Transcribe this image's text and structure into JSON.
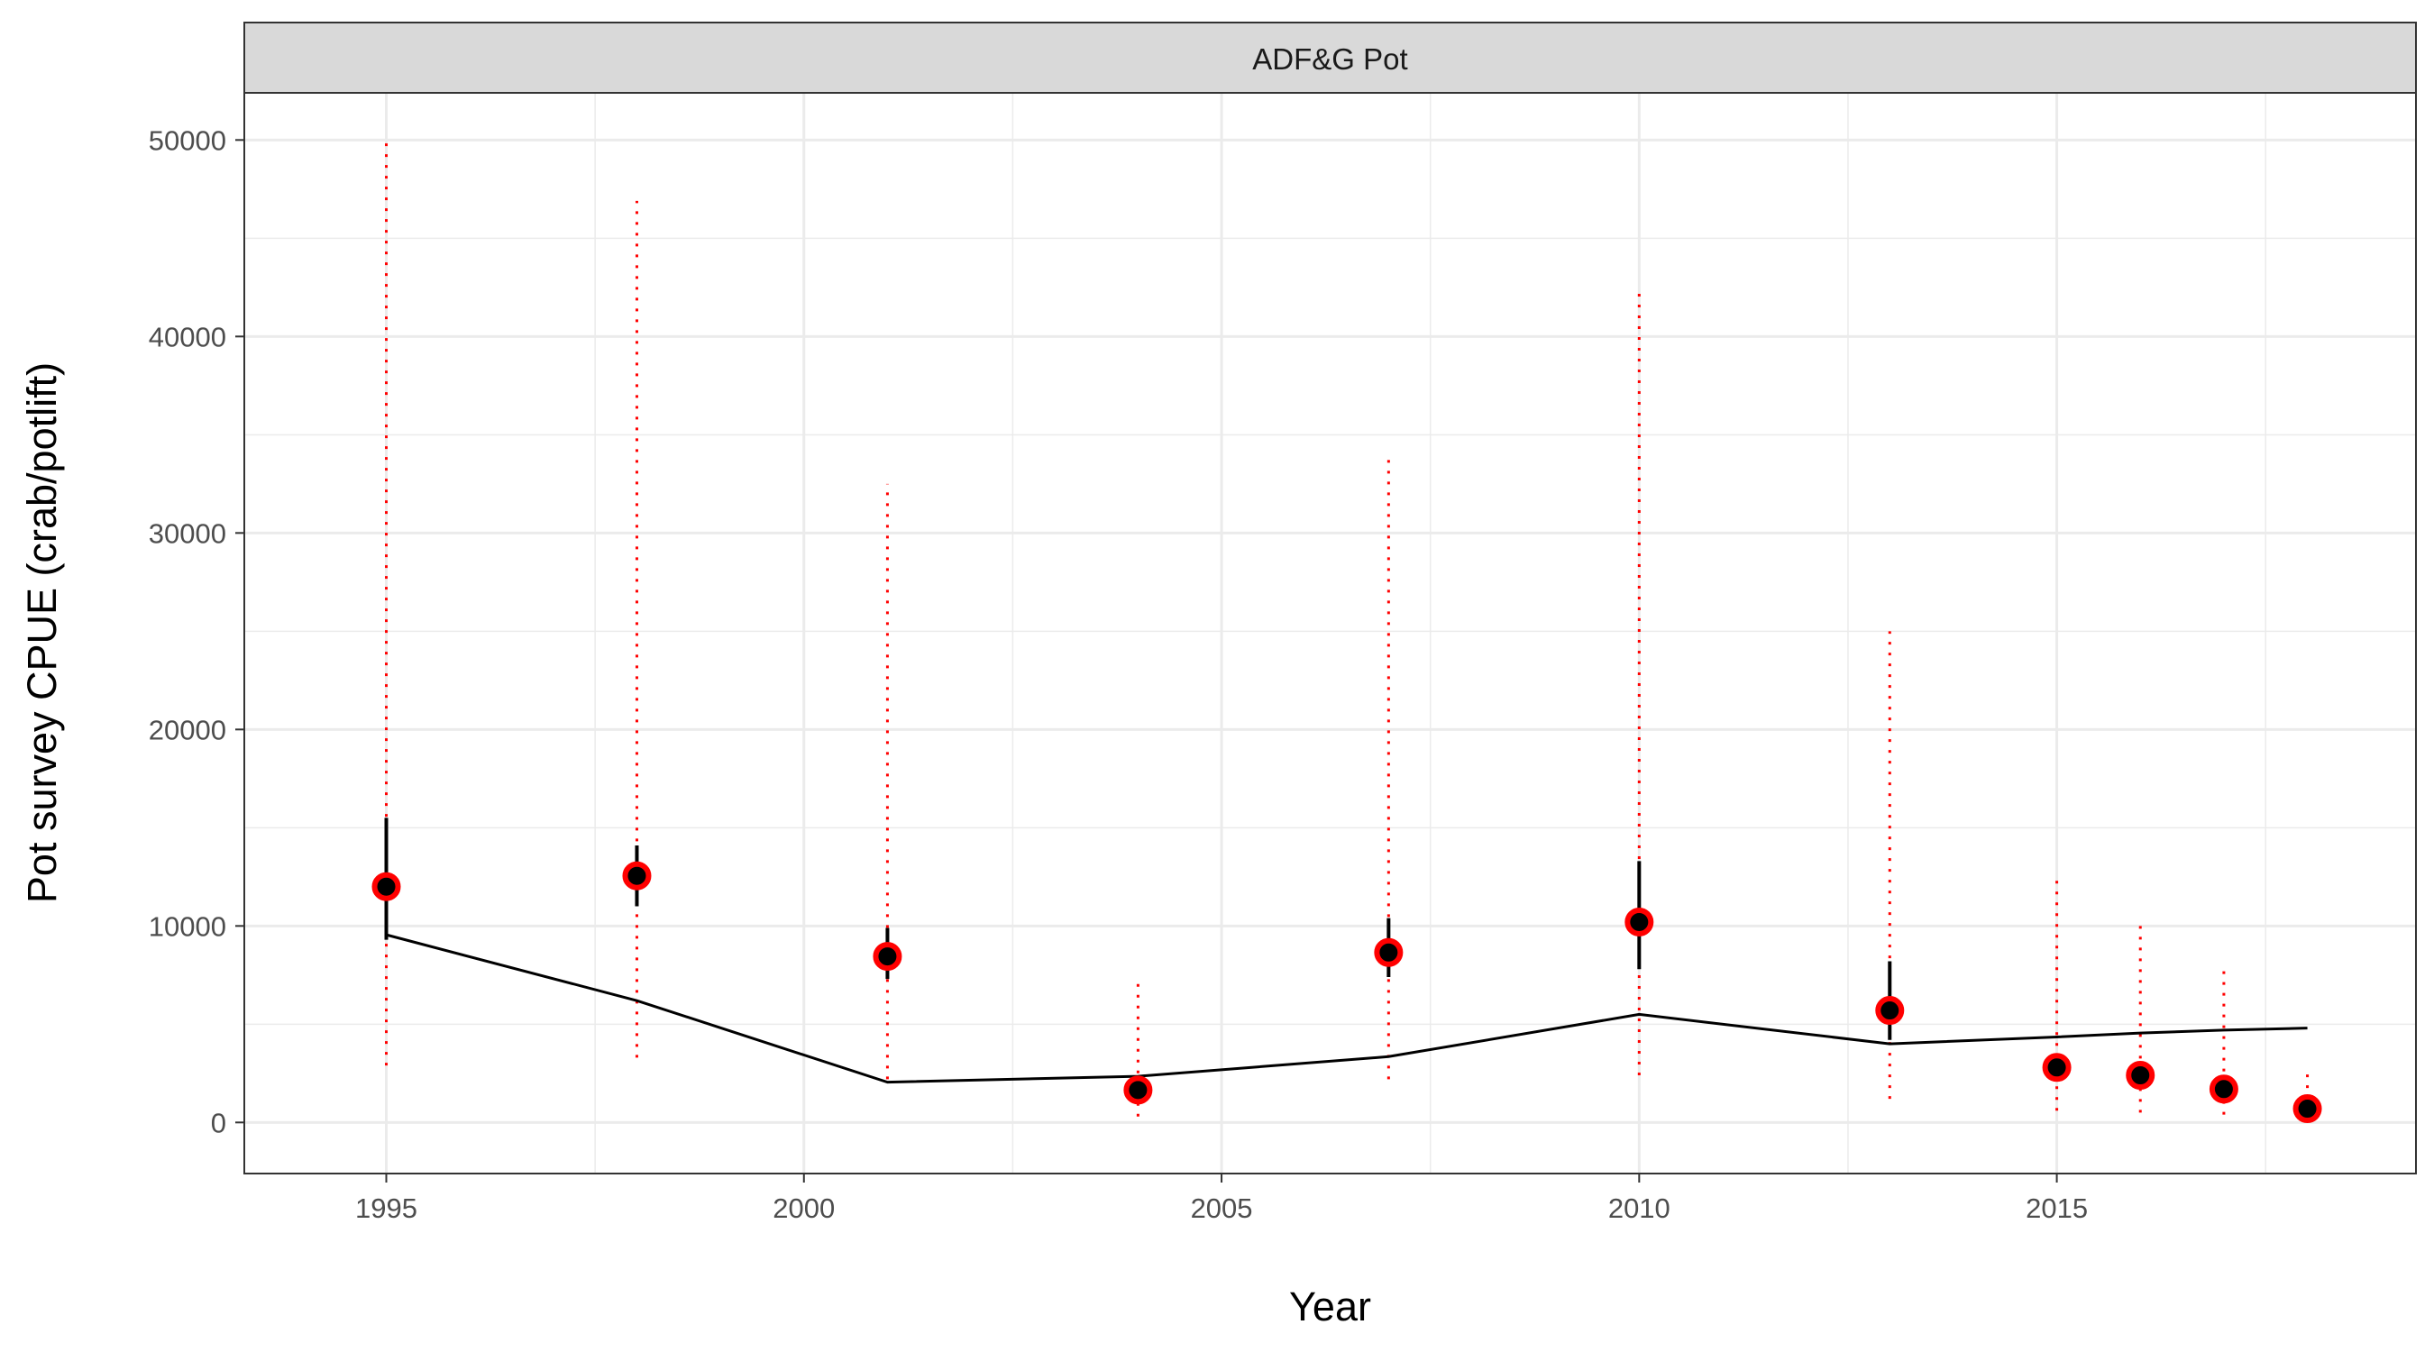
{
  "chart_data": {
    "type": "line",
    "panel_label": "ADF&G Pot",
    "xlabel": "Year",
    "ylabel": "Pot survey CPUE (crab/potlift)",
    "xlim": [
      1993.3,
      2019.3
    ],
    "ylim": [
      -2600,
      52400
    ],
    "x_ticks": [
      1995,
      2000,
      2005,
      2010,
      2015
    ],
    "y_ticks": [
      0,
      10000,
      20000,
      30000,
      40000,
      50000
    ],
    "grid": true,
    "legend": "none",
    "colors": {
      "observed_point": "#000000",
      "observed_ring": "#ff0000",
      "interval_95": "#ff0000",
      "interval_se": "#000000",
      "model_fit": "#000000",
      "grid": "#ebebeb",
      "strip_fill": "#d9d9d9",
      "panel_border": "#333333"
    },
    "series": [
      {
        "role": "observed",
        "x": [
          1995,
          1998,
          2001,
          2004,
          2007,
          2010,
          2013,
          2015,
          2016,
          2017,
          2018
        ],
        "y": [
          12000,
          12550,
          8450,
          1650,
          8650,
          10200,
          5700,
          2800,
          2400,
          1700,
          700
        ],
        "ci_lower": [
          2900,
          3300,
          2200,
          300,
          2200,
          2400,
          1200,
          600,
          500,
          400,
          100
        ],
        "ci_upper": [
          50000,
          46900,
          32500,
          7100,
          34000,
          42300,
          25000,
          12300,
          10200,
          7800,
          2600
        ],
        "se_lower": [
          9300,
          11000,
          7300,
          1200,
          7400,
          7800,
          4200,
          2100,
          1800,
          1300,
          500
        ],
        "se_upper": [
          15500,
          14100,
          9900,
          2200,
          10400,
          13300,
          8200,
          3500,
          3000,
          2200,
          1000
        ]
      },
      {
        "role": "fitted",
        "x": [
          1995,
          1998,
          2001,
          2004,
          2007,
          2010,
          2013,
          2015,
          2016,
          2017,
          2018
        ],
        "y": [
          9550,
          6200,
          2050,
          2350,
          3350,
          5500,
          4000,
          4350,
          4550,
          4700,
          4800
        ]
      }
    ]
  }
}
